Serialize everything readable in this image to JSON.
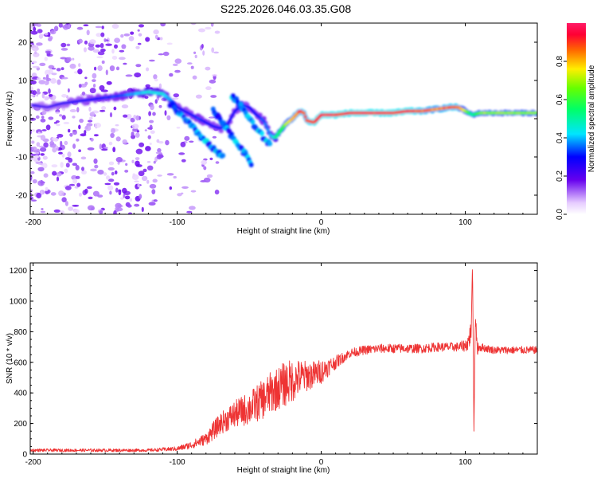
{
  "title": "S225.2026.046.03.35.G08",
  "chart_data": [
    {
      "type": "heatmap",
      "name": "spectrogram",
      "xlabel": "Height of straight line (km)",
      "ylabel": "Frequency (Hz)",
      "xlim": [
        -202,
        150
      ],
      "ylim": [
        -25,
        25
      ],
      "xticks": [
        -200,
        -100,
        0,
        100
      ],
      "yticks": [
        -20,
        -10,
        0,
        10,
        20
      ],
      "ridge": {
        "x": [
          -200,
          -190,
          -180,
          -170,
          -160,
          -150,
          -140,
          -130,
          -120,
          -110,
          -105,
          -100,
          -95,
          -90,
          -85,
          -80,
          -75,
          -70,
          -65,
          -60,
          -55,
          -50,
          -45,
          -40,
          -35,
          -32,
          -28,
          -25,
          -20,
          -15,
          -12,
          -10,
          -5,
          0,
          5,
          10,
          20,
          30,
          40,
          50,
          60,
          70,
          80,
          90,
          95,
          100,
          105,
          110,
          120,
          130,
          140,
          150
        ],
        "freq": [
          3.5,
          3,
          4,
          4.5,
          5,
          5.5,
          6,
          6.5,
          7,
          6.5,
          5,
          3,
          2,
          1,
          0,
          -1,
          -2,
          -2.5,
          -1.5,
          2,
          3.5,
          3,
          1,
          -0.5,
          -4.5,
          -5,
          -3,
          -1.5,
          0,
          2,
          1.5,
          -0.5,
          -1,
          1,
          1,
          1,
          1.5,
          1.5,
          1.5,
          1.5,
          2,
          2,
          2.5,
          3,
          3,
          2,
          1,
          1.5,
          1.5,
          1.5,
          1.5,
          1.5
        ],
        "amp": [
          0.25,
          0.22,
          0.25,
          0.28,
          0.3,
          0.32,
          0.35,
          0.4,
          0.45,
          0.45,
          0.4,
          0.3,
          0.3,
          0.3,
          0.35,
          0.3,
          0.3,
          0.3,
          0.3,
          0.3,
          0.3,
          0.3,
          0.3,
          0.35,
          0.4,
          0.5,
          0.6,
          0.7,
          0.85,
          0.9,
          0.9,
          0.9,
          0.95,
          0.95,
          0.95,
          0.95,
          0.95,
          0.95,
          0.95,
          0.95,
          0.95,
          0.9,
          0.85,
          0.9,
          0.9,
          0.7,
          0.5,
          0.7,
          0.7,
          0.7,
          0.7,
          0.7
        ]
      },
      "branches": [
        {
          "x": [
            -105,
            -95,
            -85,
            -75,
            -68
          ],
          "freq": [
            4,
            0,
            -4,
            -8,
            -10
          ]
        },
        {
          "x": [
            -75,
            -65,
            -55,
            -48
          ],
          "freq": [
            2,
            -3,
            -8,
            -12
          ]
        },
        {
          "x": [
            -62,
            -55,
            -48,
            -40,
            -35
          ],
          "freq": [
            6,
            3,
            -1,
            -5,
            -7
          ]
        }
      ],
      "colorbar": {
        "label": "Normalized spectral amplitude",
        "range": [
          0,
          1
        ],
        "ticks": [
          0.0,
          0.2,
          0.4,
          0.6,
          0.8
        ]
      }
    },
    {
      "type": "line",
      "name": "snr",
      "xlabel": "Height of straight line (km)",
      "ylabel": "SNR (10 * v/v)",
      "xlim": [
        -202,
        150
      ],
      "ylim": [
        0,
        1250
      ],
      "xticks": [
        -200,
        -100,
        0,
        100
      ],
      "yticks": [
        0,
        200,
        400,
        600,
        800,
        1000,
        1200
      ],
      "color": "#ee3333",
      "series": [
        {
          "name": "SNR",
          "x": [
            -202,
            -180,
            -160,
            -140,
            -120,
            -110,
            -100,
            -90,
            -80,
            -75,
            -70,
            -65,
            -60,
            -55,
            -50,
            -45,
            -40,
            -35,
            -30,
            -25,
            -20,
            -15,
            -10,
            -5,
            0,
            5,
            10,
            15,
            20,
            25,
            30,
            40,
            50,
            60,
            70,
            80,
            90,
            95,
            100,
            102,
            104,
            105,
            106,
            107,
            108,
            110,
            115,
            120,
            130,
            140,
            150
          ],
          "y": [
            25,
            25,
            25,
            25,
            25,
            30,
            35,
            60,
            100,
            150,
            200,
            230,
            260,
            280,
            300,
            330,
            360,
            400,
            430,
            460,
            480,
            500,
            510,
            520,
            540,
            570,
            600,
            630,
            660,
            670,
            680,
            690,
            690,
            690,
            690,
            700,
            700,
            700,
            710,
            730,
            800,
            1250,
            150,
            900,
            700,
            700,
            690,
            680,
            680,
            680,
            680
          ],
          "spread": [
            10,
            10,
            10,
            10,
            10,
            12,
            15,
            25,
            40,
            60,
            70,
            80,
            90,
            100,
            110,
            120,
            130,
            140,
            140,
            150,
            140,
            120,
            100,
            90,
            80,
            60,
            45,
            35,
            30,
            30,
            30,
            30,
            30,
            30,
            30,
            30,
            30,
            30,
            40,
            60,
            80,
            0,
            0,
            80,
            60,
            30,
            25,
            25,
            25,
            25,
            25
          ]
        }
      ]
    }
  ]
}
